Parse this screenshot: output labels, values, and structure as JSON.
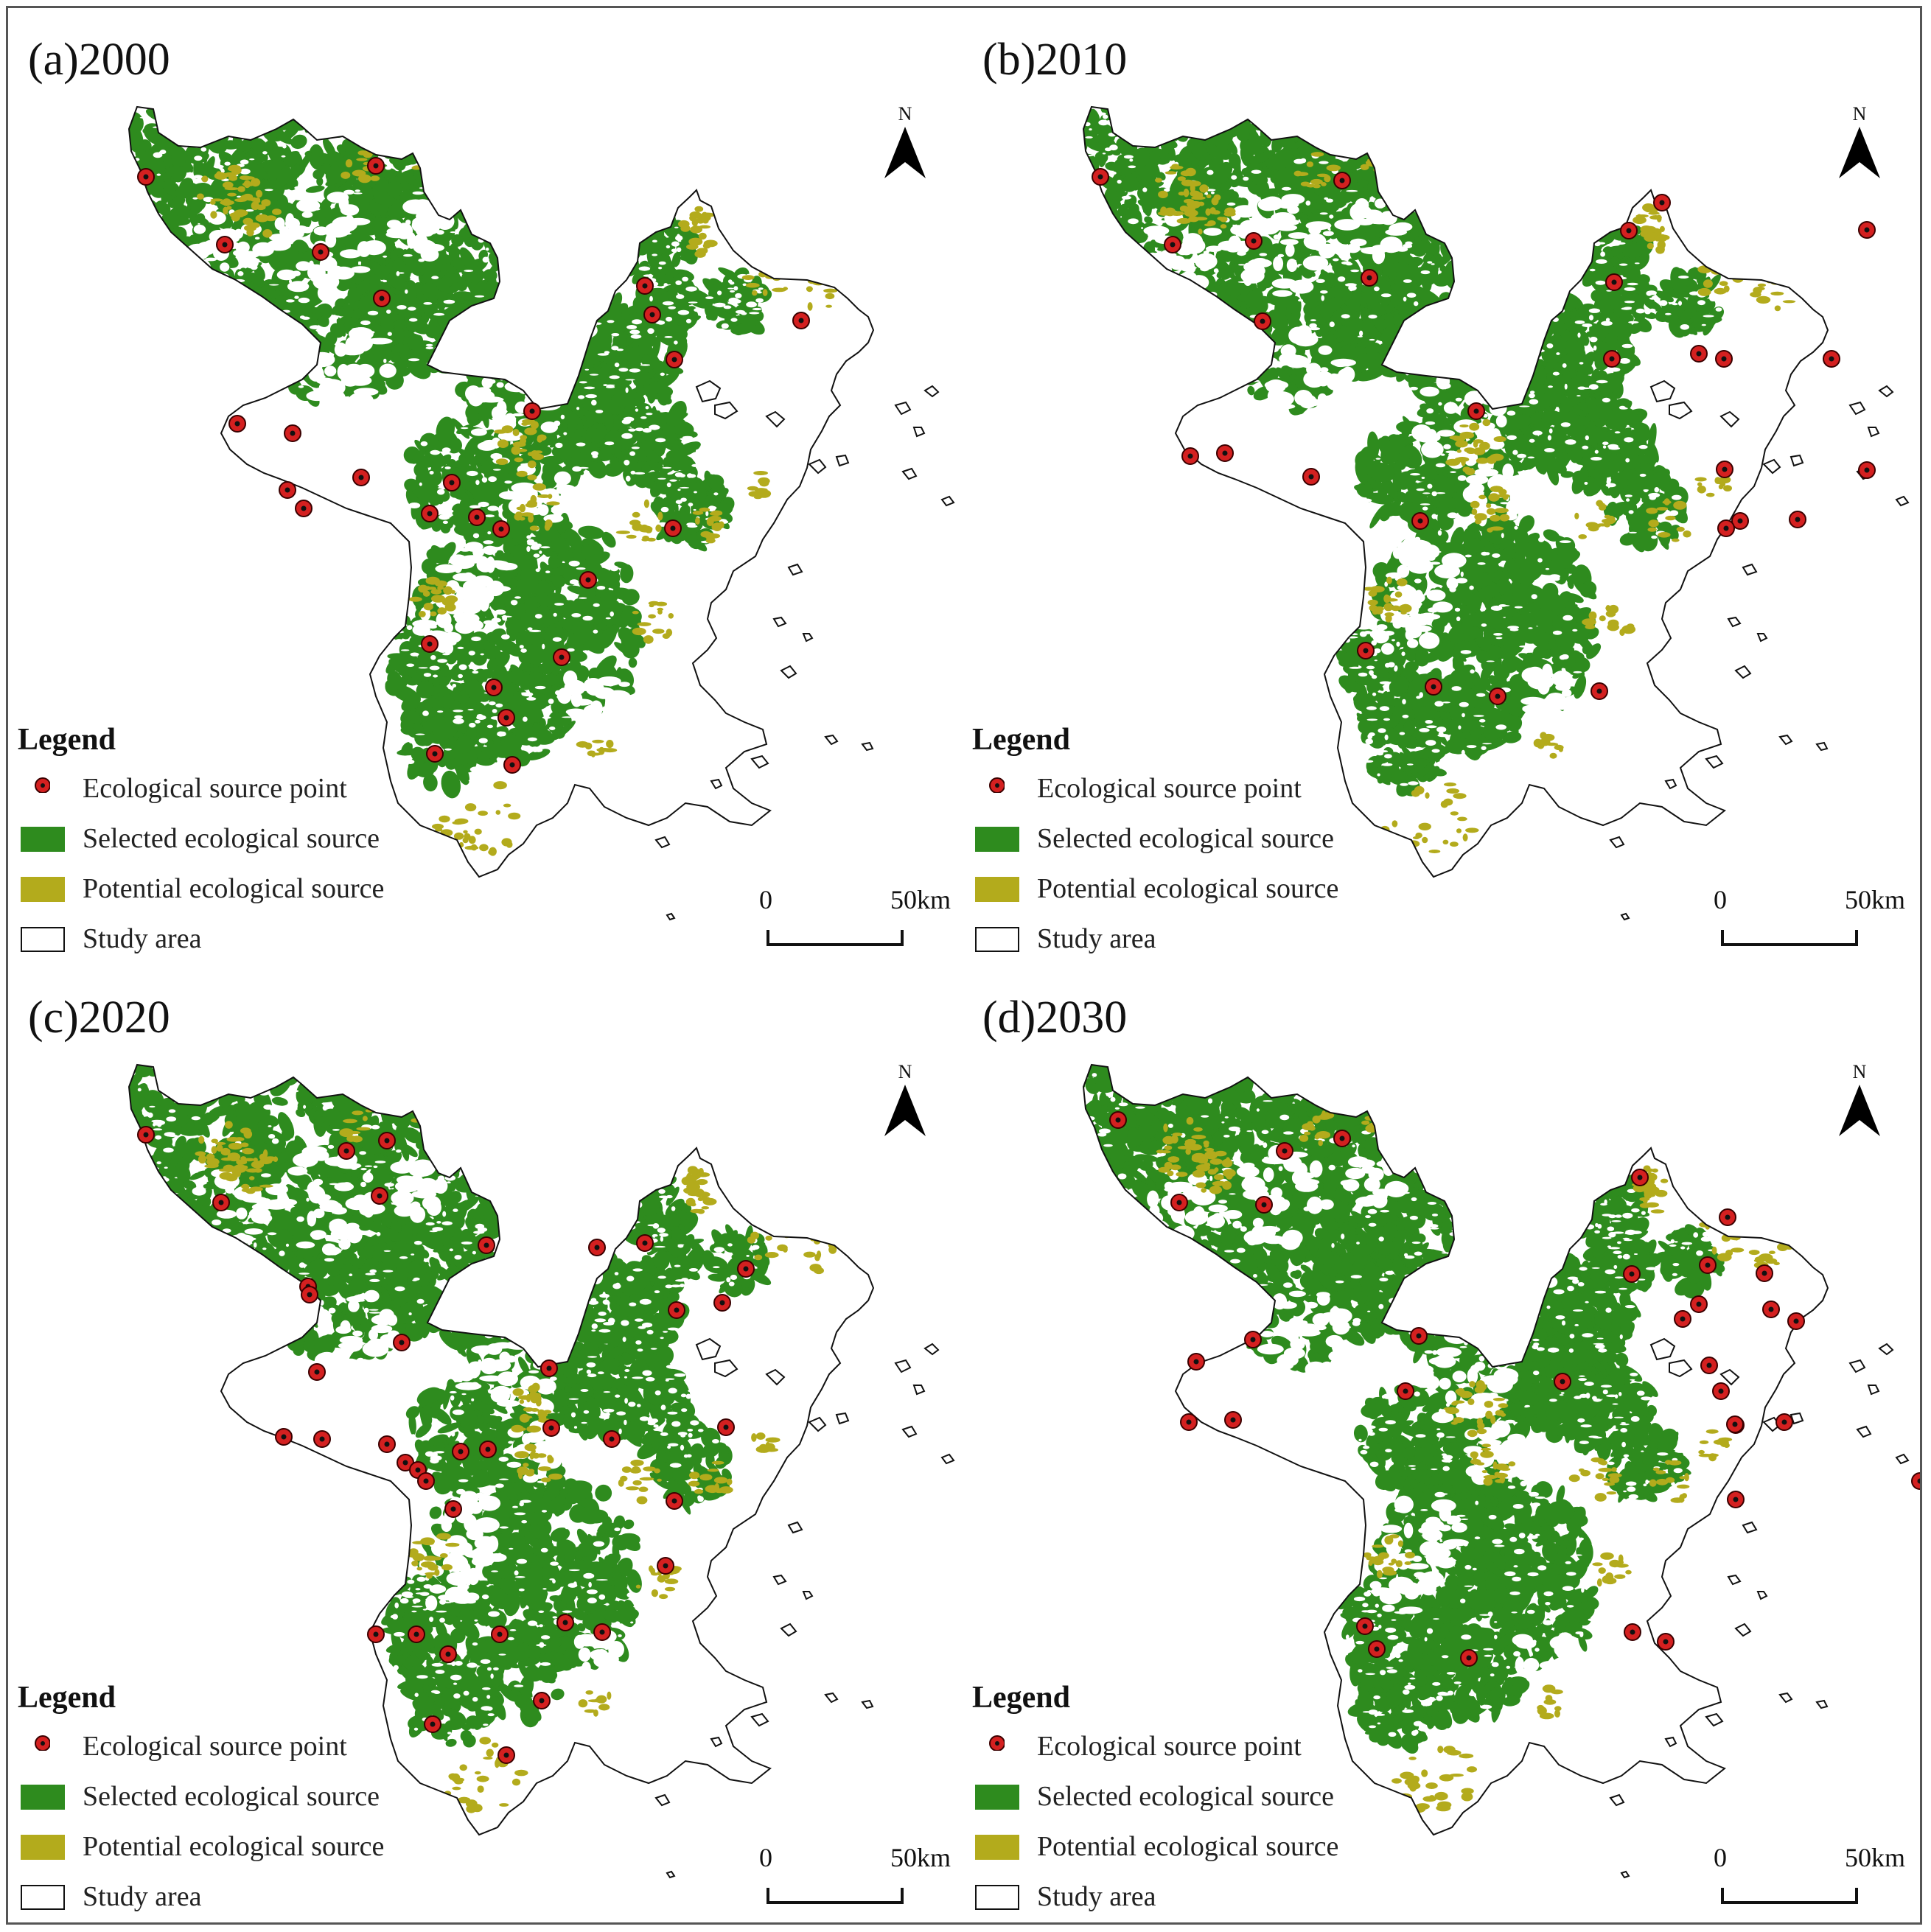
{
  "colors": {
    "selected": "#2e8b1e",
    "potential": "#b3ab1c",
    "point_fill": "#d42020",
    "outline": "#111111"
  },
  "legend": {
    "title": "Legend",
    "items": [
      {
        "label": "Ecological source point",
        "kind": "point"
      },
      {
        "label": "Selected ecological source",
        "kind": "selected"
      },
      {
        "label": "Potential ecological source",
        "kind": "potential"
      },
      {
        "label": "Study area",
        "kind": "area"
      }
    ]
  },
  "north_label": "N",
  "scale": {
    "start": "0",
    "end": "50km"
  },
  "panels": [
    {
      "title": "(a)2000",
      "points": [
        [
          188,
          230
        ],
        [
          500,
          215
        ],
        [
          295,
          322
        ],
        [
          425,
          332
        ],
        [
          508,
          395
        ],
        [
          312,
          565
        ],
        [
          387,
          578
        ],
        [
          865,
          378
        ],
        [
          875,
          417
        ],
        [
          905,
          478
        ],
        [
          1077,
          425
        ],
        [
          712,
          548
        ],
        [
          603,
          645
        ],
        [
          480,
          638
        ],
        [
          380,
          655
        ],
        [
          402,
          680
        ],
        [
          573,
          687
        ],
        [
          637,
          692
        ],
        [
          670,
          708
        ],
        [
          903,
          707
        ],
        [
          788,
          777
        ],
        [
          573,
          864
        ],
        [
          752,
          882
        ],
        [
          660,
          923
        ],
        [
          677,
          964
        ],
        [
          580,
          1013
        ],
        [
          685,
          1028
        ]
      ]
    },
    {
      "title": "(b)2010",
      "points": [
        [
          188,
          230
        ],
        [
          516,
          235
        ],
        [
          286,
          322
        ],
        [
          396,
          317
        ],
        [
          553,
          367
        ],
        [
          408,
          426
        ],
        [
          1000,
          470
        ],
        [
          905,
          303
        ],
        [
          885,
          373
        ],
        [
          882,
          477
        ],
        [
          950,
          265
        ],
        [
          1034,
          477
        ],
        [
          1035,
          627
        ],
        [
          1056,
          697
        ],
        [
          1037,
          707
        ],
        [
          698,
          548
        ],
        [
          310,
          609
        ],
        [
          357,
          605
        ],
        [
          474,
          637
        ],
        [
          622,
          697
        ],
        [
          1180,
          477
        ],
        [
          1228,
          302
        ],
        [
          1228,
          628
        ],
        [
          1134,
          695
        ],
        [
          548,
          873
        ],
        [
          640,
          922
        ],
        [
          727,
          935
        ],
        [
          865,
          928
        ]
      ]
    },
    {
      "title": "(c)2020",
      "points": [
        [
          188,
          230
        ],
        [
          460,
          252
        ],
        [
          515,
          238
        ],
        [
          505,
          313
        ],
        [
          290,
          322
        ],
        [
          650,
          380
        ],
        [
          408,
          436
        ],
        [
          410,
          447
        ],
        [
          535,
          512
        ],
        [
          420,
          552
        ],
        [
          800,
          383
        ],
        [
          865,
          377
        ],
        [
          1002,
          412
        ],
        [
          970,
          458
        ],
        [
          908,
          468
        ],
        [
          375,
          640
        ],
        [
          427,
          643
        ],
        [
          515,
          650
        ],
        [
          540,
          675
        ],
        [
          557,
          685
        ],
        [
          568,
          700
        ],
        [
          615,
          660
        ],
        [
          652,
          657
        ],
        [
          605,
          738
        ],
        [
          738,
          628
        ],
        [
          735,
          547
        ],
        [
          820,
          643
        ],
        [
          975,
          627
        ],
        [
          905,
          727
        ],
        [
          893,
          815
        ],
        [
          500,
          908
        ],
        [
          555,
          908
        ],
        [
          598,
          935
        ],
        [
          668,
          908
        ],
        [
          757,
          892
        ],
        [
          807,
          905
        ],
        [
          725,
          998
        ],
        [
          577,
          1030
        ],
        [
          677,
          1072
        ]
      ]
    },
    {
      "title": "(d)2030",
      "points": [
        [
          212,
          210
        ],
        [
          516,
          235
        ],
        [
          438,
          252
        ],
        [
          410,
          325
        ],
        [
          295,
          322
        ],
        [
          395,
          508
        ],
        [
          318,
          538
        ],
        [
          308,
          620
        ],
        [
          368,
          617
        ],
        [
          620,
          503
        ],
        [
          1000,
          460
        ],
        [
          920,
          288
        ],
        [
          1012,
          407
        ],
        [
          909,
          419
        ],
        [
          1039,
          342
        ],
        [
          1089,
          418
        ],
        [
          1098,
          467
        ],
        [
          1132,
          483
        ],
        [
          978,
          480
        ],
        [
          1014,
          543
        ],
        [
          1030,
          578
        ],
        [
          1050,
          624
        ],
        [
          1050,
          725
        ],
        [
          1300,
          700
        ],
        [
          1334,
          628
        ],
        [
          602,
          578
        ],
        [
          815,
          565
        ],
        [
          1049,
          623
        ],
        [
          1116,
          620
        ],
        [
          547,
          897
        ],
        [
          563,
          928
        ],
        [
          688,
          940
        ],
        [
          955,
          918
        ],
        [
          910,
          905
        ]
      ]
    }
  ]
}
